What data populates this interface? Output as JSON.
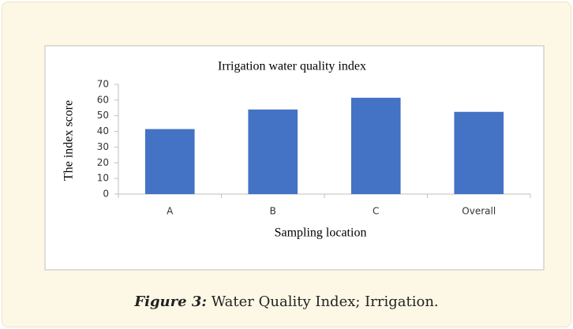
{
  "chart_data": {
    "type": "bar",
    "title": "Irrigation water quality index",
    "x_label": "Sampling location",
    "y_label": "The index score",
    "categories": [
      "A",
      "B",
      "C",
      "Overall"
    ],
    "values": [
      41.5,
      54,
      61.5,
      52.5
    ],
    "color": "#4472c4",
    "ylim": [
      0,
      70
    ],
    "yticks": [
      0,
      10,
      20,
      30,
      40,
      50,
      60,
      70
    ],
    "grid": false
  },
  "caption": {
    "label": "Figure 3:",
    "text": "Water Quality Index; Irrigation."
  }
}
